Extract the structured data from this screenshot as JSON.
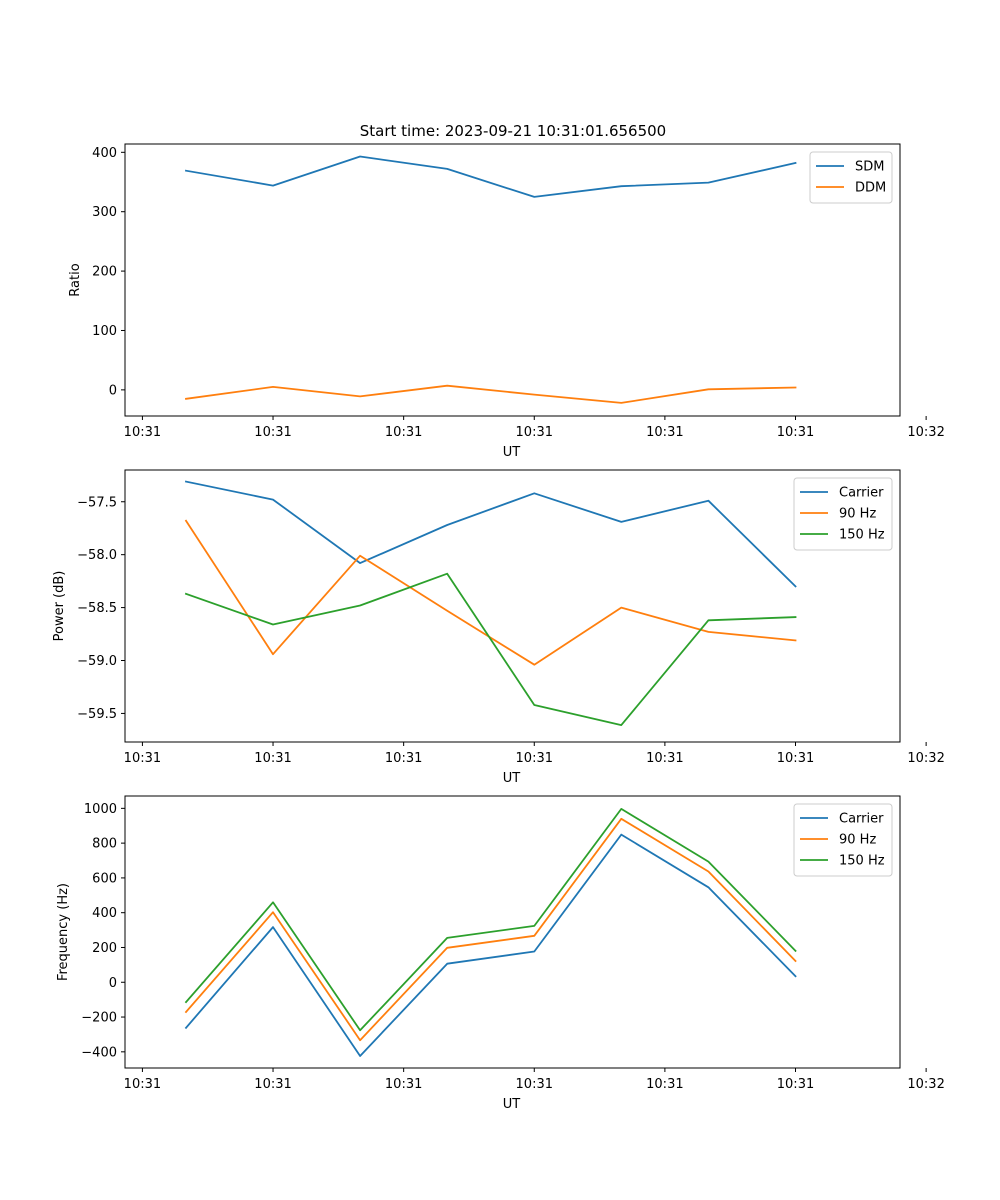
{
  "title": "Start time: 2023-09-21 10:31:01.656500",
  "colors": {
    "blue": "#1f77b4",
    "orange": "#ff7f0e",
    "green": "#2ca02c"
  },
  "chart_data": [
    {
      "type": "line",
      "ylabel": "Ratio",
      "xlabel": "UT",
      "x": [
        1,
        2,
        3,
        4,
        5,
        6,
        7,
        8
      ],
      "xlim": [
        0.3,
        9.2
      ],
      "xticks": [
        0.5,
        2.0,
        3.5,
        5.0,
        6.5,
        8.0,
        9.5
      ],
      "xtick_labels": [
        "10:31",
        "10:31",
        "10:31",
        "10:31",
        "10:31",
        "10:31",
        "10:32"
      ],
      "ylim": [
        -44,
        414
      ],
      "yticks": [
        0,
        100,
        200,
        300,
        400
      ],
      "ytick_labels": [
        "0",
        "100",
        "200",
        "300",
        "400"
      ],
      "legend_position": "top-right",
      "series": [
        {
          "name": "SDM",
          "color": "#1f77b4",
          "values": [
            369,
            344,
            393,
            372,
            325,
            343,
            349,
            382
          ]
        },
        {
          "name": "DDM",
          "color": "#ff7f0e",
          "values": [
            -15,
            5,
            -11,
            7,
            -8,
            -22,
            1,
            4
          ]
        }
      ]
    },
    {
      "type": "line",
      "ylabel": "Power (dB)",
      "xlabel": "UT",
      "x": [
        1,
        2,
        3,
        4,
        5,
        6,
        7,
        8
      ],
      "xlim": [
        0.3,
        9.2
      ],
      "xticks": [
        0.5,
        2.0,
        3.5,
        5.0,
        6.5,
        8.0,
        9.5
      ],
      "xtick_labels": [
        "10:31",
        "10:31",
        "10:31",
        "10:31",
        "10:31",
        "10:31",
        "10:32"
      ],
      "ylim": [
        -59.77,
        -57.2
      ],
      "yticks": [
        -57.5,
        -58.0,
        -58.5,
        -59.0,
        -59.5
      ],
      "ytick_labels": [
        "−57.5",
        "−58.0",
        "−58.5",
        "−59.0",
        "−59.5"
      ],
      "legend_position": "top-right",
      "series": [
        {
          "name": "Carrier",
          "color": "#1f77b4",
          "values": [
            -57.31,
            -57.48,
            -58.08,
            -57.72,
            -57.42,
            -57.69,
            -57.49,
            -58.3
          ]
        },
        {
          "name": "90 Hz",
          "color": "#ff7f0e",
          "values": [
            -57.68,
            -58.94,
            -58.01,
            -58.53,
            -59.04,
            -58.5,
            -58.73,
            -58.81
          ]
        },
        {
          "name": "150 Hz",
          "color": "#2ca02c",
          "values": [
            -58.37,
            -58.66,
            -58.48,
            -58.18,
            -59.42,
            -59.61,
            -58.62,
            -58.59
          ]
        }
      ]
    },
    {
      "type": "line",
      "ylabel": "Frequency (Hz)",
      "xlabel": "UT",
      "x": [
        1,
        2,
        3,
        4,
        5,
        6,
        7,
        8
      ],
      "xlim": [
        0.3,
        9.2
      ],
      "xticks": [
        0.5,
        2.0,
        3.5,
        5.0,
        6.5,
        8.0,
        9.5
      ],
      "xtick_labels": [
        "10:31",
        "10:31",
        "10:31",
        "10:31",
        "10:31",
        "10:31",
        "10:32"
      ],
      "ylim": [
        -493,
        1071
      ],
      "yticks": [
        1000,
        800,
        600,
        400,
        200,
        0,
        -200,
        -400
      ],
      "ytick_labels": [
        "1000",
        "800",
        "600",
        "400",
        "200",
        "0",
        "−200",
        "−400"
      ],
      "legend_position": "top-right",
      "series": [
        {
          "name": "Carrier",
          "color": "#1f77b4",
          "values": [
            -262,
            317,
            -424,
            107,
            177,
            849,
            546,
            35
          ]
        },
        {
          "name": "90 Hz",
          "color": "#ff7f0e",
          "values": [
            -171,
            403,
            -333,
            198,
            267,
            940,
            637,
            122
          ]
        },
        {
          "name": "150 Hz",
          "color": "#2ca02c",
          "values": [
            -114,
            460,
            -276,
            255,
            324,
            997,
            694,
            181
          ]
        }
      ]
    }
  ]
}
